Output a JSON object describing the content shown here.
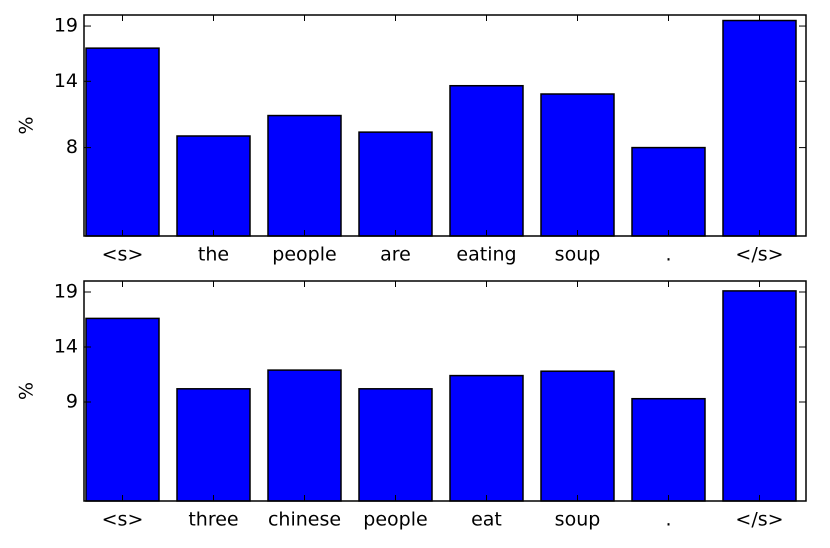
{
  "chart_data": [
    {
      "type": "bar",
      "ylabel": "%",
      "categories": [
        "<s>",
        "the",
        "people",
        "are",
        "eating",
        "soup",
        ".",
        "</s>"
      ],
      "values": [
        17.0,
        9.05,
        10.9,
        9.4,
        13.6,
        12.85,
        8.0,
        19.5
      ],
      "color": "#0000ff",
      "ylim": [
        0,
        20
      ],
      "yticks": [
        8,
        14,
        19
      ]
    },
    {
      "type": "bar",
      "ylabel": "%",
      "categories": [
        "<s>",
        "three",
        "chinese",
        "people",
        "eat",
        "soup",
        ".",
        "</s>"
      ],
      "values": [
        16.6,
        10.2,
        11.9,
        10.2,
        11.4,
        11.8,
        9.3,
        19.1
      ],
      "color": "#0000ff",
      "ylim": [
        0,
        20
      ],
      "yticks": [
        9,
        14,
        19
      ]
    }
  ]
}
